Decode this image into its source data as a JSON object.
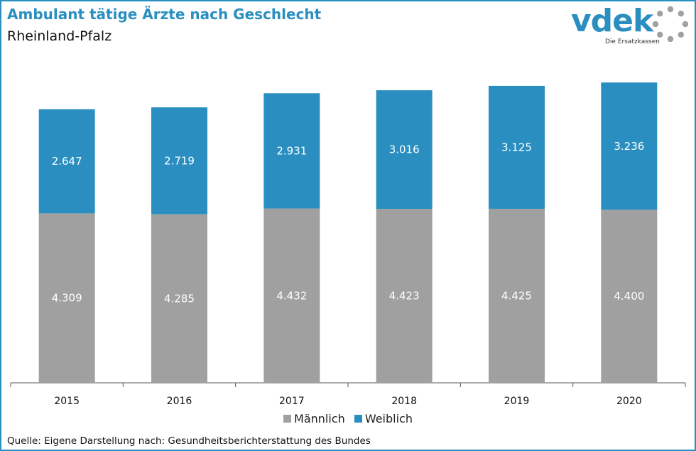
{
  "title": "Ambulant tätige Ärzte nach Geschlecht",
  "subtitle": "Rheinland-Pfalz",
  "logo": {
    "word": "vdek",
    "tagline": "Die Ersatzkassen"
  },
  "source": "Quelle: Eigene Darstellung nach: Gesundheitsberichterstattung  des Bundes",
  "colors": {
    "accent": "#2a8fc0",
    "maennlich": "#a0a0a0",
    "weiblich": "#2a8fc0"
  },
  "chart_data": {
    "type": "bar",
    "stacked": true,
    "categories": [
      "2015",
      "2016",
      "2017",
      "2018",
      "2019",
      "2020"
    ],
    "series": [
      {
        "name": "Männlich",
        "values": [
          4309,
          4285,
          4432,
          4423,
          4425,
          4400
        ],
        "labels": [
          "4.309",
          "4.285",
          "4.432",
          "4.423",
          "4.425",
          "4.400"
        ]
      },
      {
        "name": "Weiblich",
        "values": [
          2647,
          2719,
          2931,
          3016,
          3125,
          3236
        ],
        "labels": [
          "2.647",
          "2.719",
          "2.931",
          "3.016",
          "3.125",
          "3.236"
        ]
      }
    ],
    "ylim": [
      0,
      8000
    ],
    "grid": false,
    "legend_position": "bottom"
  }
}
